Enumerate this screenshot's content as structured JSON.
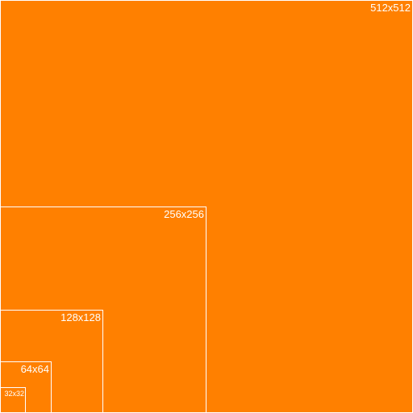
{
  "colors": {
    "fill": "#ff8000",
    "border": "#ffffff",
    "label": "#ffffff"
  },
  "boxes": [
    {
      "label": "512x512"
    },
    {
      "label": "256x256"
    },
    {
      "label": "128x128"
    },
    {
      "label": "64x64"
    },
    {
      "label": "32x32"
    }
  ]
}
